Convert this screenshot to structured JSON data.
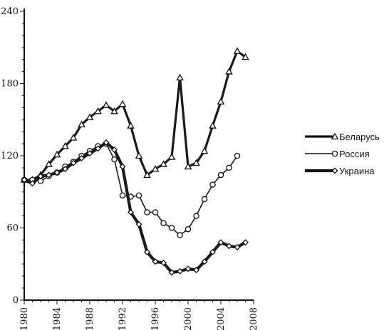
{
  "chart_data": {
    "type": "line",
    "title": "",
    "xlabel": "",
    "ylabel": "",
    "xlim": [
      1980,
      2008
    ],
    "ylim": [
      0,
      240
    ],
    "x_ticks": [
      "1980",
      "1984",
      "1988",
      "1992",
      "1996",
      "2000",
      "2004",
      "2008"
    ],
    "y_ticks": [
      "0",
      "60",
      "120",
      "180",
      "240"
    ],
    "grid": false,
    "legend_position": "right",
    "series": [
      {
        "name": "Беларусь",
        "marker": "triangle",
        "color": "#1a1a1a",
        "x": [
          1980,
          1981,
          1982,
          1983,
          1984,
          1985,
          1986,
          1987,
          1988,
          1989,
          1990,
          1991,
          1992,
          1993,
          1994,
          1995,
          1996,
          1997,
          1998,
          1999,
          2000,
          2001,
          2002,
          2003,
          2004,
          2005,
          2006,
          2007
        ],
        "y": [
          100,
          100,
          104,
          113,
          121,
          128,
          135,
          146,
          152,
          157,
          162,
          157,
          163,
          145,
          120,
          104,
          109,
          113,
          119,
          185,
          111,
          114,
          124,
          145,
          165,
          190,
          207,
          202
        ]
      },
      {
        "name": "Россия",
        "marker": "circle",
        "color": "#1a1a1a",
        "x": [
          1980,
          1981,
          1982,
          1983,
          1984,
          1985,
          1986,
          1987,
          1988,
          1989,
          1990,
          1991,
          1992,
          1993,
          1994,
          1995,
          1996,
          1997,
          1998,
          1999,
          2000,
          2001,
          2002,
          2003,
          2004,
          2005,
          2006
        ],
        "y": [
          100,
          100,
          99,
          103,
          106,
          111,
          115,
          120,
          124,
          128,
          130,
          117,
          87,
          86,
          87,
          73,
          73,
          64,
          60,
          54,
          59,
          70,
          84,
          96,
          104,
          110,
          120
        ]
      },
      {
        "name": "Украина",
        "marker": "diamond",
        "color": "#1a1a1a",
        "x": [
          1980,
          1981,
          1982,
          1983,
          1984,
          1985,
          1986,
          1987,
          1988,
          1989,
          1990,
          1991,
          1992,
          1993,
          1994,
          1995,
          1996,
          1997,
          1998,
          1999,
          2000,
          2001,
          2002,
          2003,
          2004,
          2005,
          2006,
          2007
        ],
        "y": [
          100,
          97,
          103,
          104,
          106,
          109,
          114,
          118,
          122,
          126,
          131,
          125,
          111,
          73,
          63,
          40,
          32,
          31,
          23,
          24,
          26,
          25,
          32,
          40,
          48,
          45,
          44,
          48
        ]
      }
    ]
  }
}
